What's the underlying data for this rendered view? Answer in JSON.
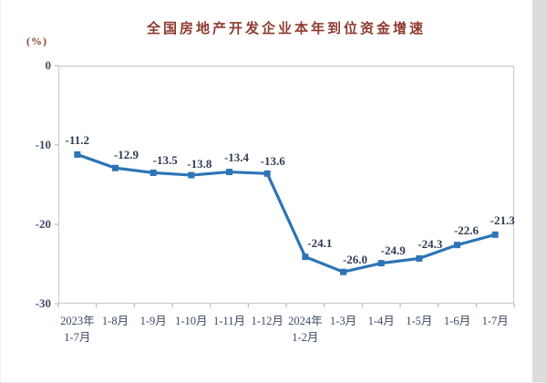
{
  "chart_data": {
    "type": "line",
    "title": "全国房地产开发企业本年到位资金增速",
    "unit_label": "(%)",
    "categories": [
      [
        "2023年",
        "1-7月"
      ],
      [
        "1-8月"
      ],
      [
        "1-9月"
      ],
      [
        "1-10月"
      ],
      [
        "1-11月"
      ],
      [
        "1-12月"
      ],
      [
        "2024年",
        "1-2月"
      ],
      [
        "1-3月"
      ],
      [
        "1-4月"
      ],
      [
        "1-5月"
      ],
      [
        "1-6月"
      ],
      [
        "1-7月"
      ]
    ],
    "values": [
      -11.2,
      -12.9,
      -13.5,
      -13.8,
      -13.4,
      -13.6,
      -24.1,
      -26.0,
      -24.9,
      -24.3,
      -22.6,
      -21.3
    ],
    "value_labels": [
      "-11.2",
      "-12.9",
      "-13.5",
      "-13.8",
      "-13.4",
      "-13.6",
      "-24.1",
      "-26.0",
      "-24.9",
      "-24.3",
      "-22.6",
      "-21.3"
    ],
    "y_ticks": [
      0,
      -10,
      -20,
      -30
    ],
    "y_tick_labels": [
      "0",
      "-10",
      "-20",
      "-30"
    ],
    "ylim": [
      -30,
      0
    ],
    "grid": false,
    "legend": "none",
    "colors": {
      "line": "#2E74B5",
      "marker": "#2E74B5",
      "title": "#8E3A2E",
      "axis_labels": "#3A4A63",
      "data_labels": "#313C52",
      "plot_border": "#C9C9C9",
      "tick": "#ABABAB",
      "right_gutter": "#DCDCDC"
    }
  }
}
